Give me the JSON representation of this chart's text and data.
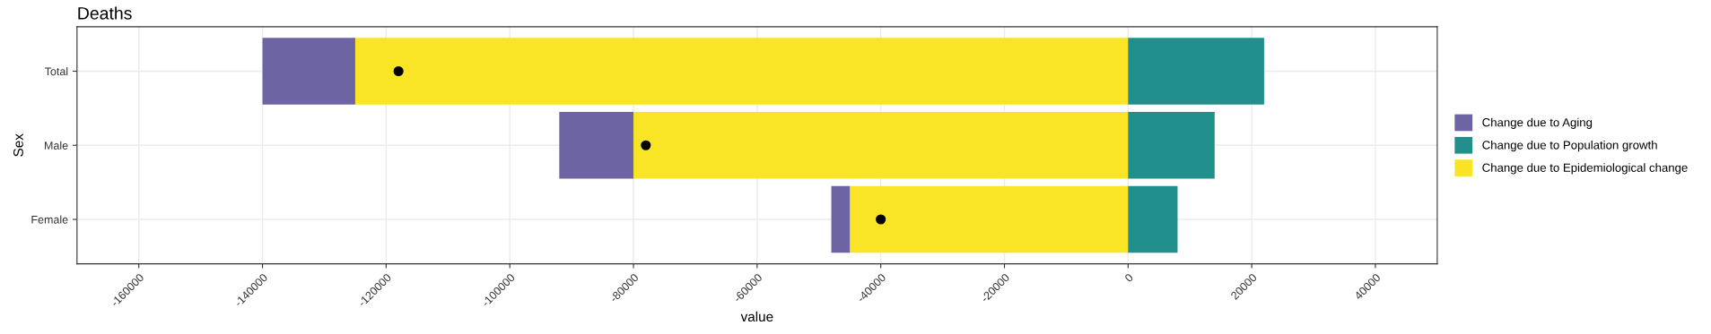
{
  "chart_data": {
    "type": "bar",
    "orientation": "horizontal",
    "stacked": true,
    "title": "Deaths",
    "xlabel": "value",
    "ylabel": "Sex",
    "categories": [
      "Total",
      "Male",
      "Female"
    ],
    "series": [
      {
        "name": "Change due to Epidemiological change",
        "color": "#f9e526",
        "values": [
          -125000,
          -80000,
          -45000
        ]
      },
      {
        "name": "Change due to Population growth",
        "color": "#21908c",
        "values": [
          22000,
          14000,
          8000
        ]
      },
      {
        "name": "Change due to Aging",
        "color": "#6d64a4",
        "values": [
          -15000,
          -12000,
          -3000
        ]
      },
      {
        "type": "scatter",
        "color": "#000000",
        "values": [
          -118000,
          -78000,
          -40000
        ]
      }
    ],
    "xlim": [
      -170000,
      50000
    ],
    "xticks": [
      -160000,
      -140000,
      -120000,
      -100000,
      -80000,
      -60000,
      -40000,
      -20000,
      0,
      20000,
      40000
    ],
    "grid": true,
    "legend": "right",
    "marker": "circle"
  }
}
